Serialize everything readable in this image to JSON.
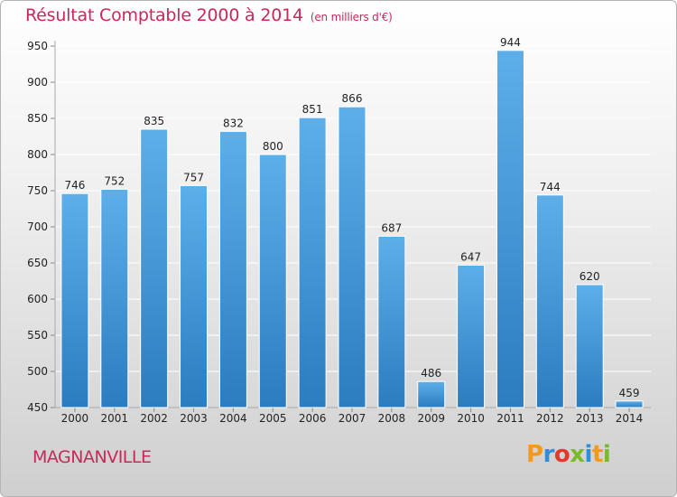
{
  "title": "Résultat Comptable 2000 à 2014",
  "unit_note": "(en milliers d'€)",
  "city": "MAGNANVILLE",
  "logo": [
    "P",
    "r",
    "o",
    "x",
    "i",
    "t",
    "i"
  ],
  "colors": {
    "title": "#c8285a",
    "bar_top": "#5dafea",
    "bar_bottom": "#2b7cc0",
    "grid": "#ffffff"
  },
  "chart_data": {
    "type": "bar",
    "categories": [
      "2000",
      "2001",
      "2002",
      "2003",
      "2004",
      "2005",
      "2006",
      "2007",
      "2008",
      "2009",
      "2010",
      "2011",
      "2012",
      "2013",
      "2014"
    ],
    "values": [
      746,
      752,
      835,
      757,
      832,
      800,
      851,
      866,
      687,
      486,
      647,
      944,
      744,
      620,
      459
    ],
    "ylim": [
      450,
      950
    ],
    "yticks": [
      450,
      500,
      550,
      600,
      650,
      700,
      750,
      800,
      850,
      900,
      950
    ],
    "grid": true,
    "title": "Résultat Comptable 2000 à 2014",
    "xlabel": "",
    "ylabel": ""
  }
}
